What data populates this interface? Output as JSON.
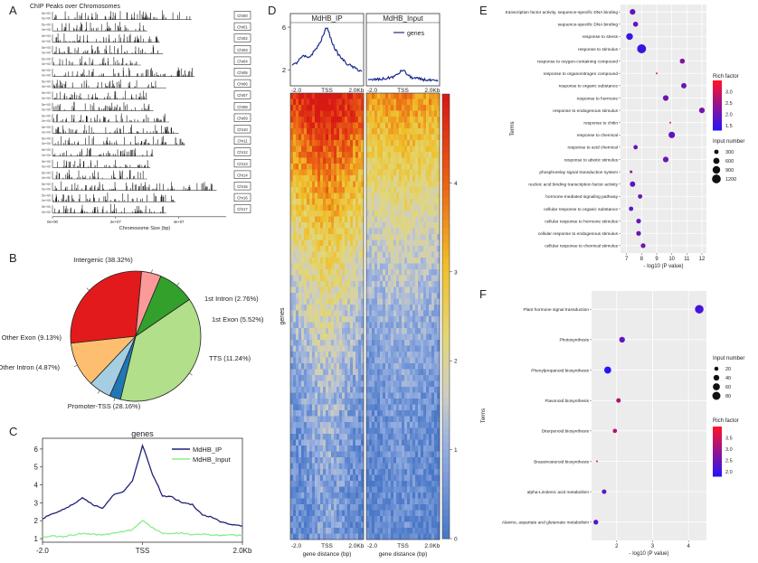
{
  "figure": {
    "panel_letters": [
      "A",
      "B",
      "C",
      "D",
      "E",
      "F"
    ]
  },
  "panel_a": {
    "title": "ChIP Peaks over Chromosomes",
    "xlabel": "Chromosome Size (bp)",
    "xticks": [
      "0e+00",
      "2e+07",
      "4e+07"
    ],
    "ytick_top": "5e+00",
    "ytick_bottom": "0e+00",
    "chromosomes": [
      "Chr00",
      "Chr01",
      "Chr02",
      "Chr03",
      "Chr04",
      "Chr05",
      "Chr06",
      "Chr07",
      "Chr08",
      "Chr09",
      "Chr10",
      "Chr11",
      "Chr12",
      "Chr13",
      "Chr14",
      "Chr15",
      "Chr16",
      "Chr17"
    ],
    "lengths_mb": [
      44,
      30,
      34,
      35,
      28,
      45,
      36,
      30,
      32,
      37,
      40,
      42,
      32,
      31,
      30,
      52,
      39,
      36
    ]
  },
  "chart_data": [
    {
      "type": "pie",
      "panel": "B",
      "labels": [
        "Intergenic (38.32%)",
        "1st Intron (2.76%)",
        "1st Exon (5.52%)",
        "TTS (11.24%)",
        "Promoter-TSS (28.16%)",
        "Other Intron (4.87%)",
        "Other Exon (9.13%)"
      ],
      "values": [
        38.32,
        2.76,
        5.52,
        11.24,
        28.16,
        4.87,
        9.13
      ],
      "colors": [
        "#b2df8a",
        "#1f78b4",
        "#a6cee3",
        "#fdbf6f",
        "#e31a1c",
        "#fb9a99",
        "#33a02c"
      ]
    },
    {
      "type": "line",
      "panel": "C",
      "title": "genes",
      "x": [
        -2000,
        -1800,
        -1600,
        -1400,
        -1200,
        -1000,
        -800,
        -600,
        -400,
        -200,
        0,
        200,
        400,
        600,
        800,
        1000,
        1200,
        1400,
        1600,
        1800,
        2000
      ],
      "xticks": [
        "-2.0",
        "TSS",
        "2.0Kb"
      ],
      "yticks": [
        "1",
        "2",
        "3",
        "4",
        "5",
        "6"
      ],
      "ylim": [
        0.8,
        6.6
      ],
      "series": [
        {
          "name": "MdHB_IP",
          "color": "#1f1f7a",
          "values": [
            2.1,
            2.4,
            2.6,
            2.9,
            3.3,
            2.9,
            2.7,
            3.4,
            3.6,
            4.2,
            6.2,
            4.6,
            3.4,
            3.3,
            3.0,
            2.9,
            2.3,
            2.2,
            1.9,
            1.8,
            1.7
          ]
        },
        {
          "name": "MdHB_Input",
          "color": "#88ee88",
          "values": [
            1.1,
            1.15,
            1.1,
            1.2,
            1.3,
            1.25,
            1.2,
            1.3,
            1.4,
            1.5,
            2.0,
            1.6,
            1.3,
            1.3,
            1.3,
            1.2,
            1.25,
            1.2,
            1.2,
            1.2,
            1.15
          ]
        }
      ]
    },
    {
      "type": "heatmap",
      "panel": "D",
      "profile_titles": [
        "MdHB_IP",
        "MdHB_Input"
      ],
      "profile_ytick_top": "6",
      "profile_ytick_bottom": "2",
      "legend": "genes",
      "xticks": [
        "-2.0",
        "TSS",
        "2.0Kb"
      ],
      "xlabel": "gene distance (bp)",
      "ylabel": "genes",
      "colorbar_ticks": [
        "0",
        "1",
        "2",
        "3",
        "4"
      ],
      "colorbar_range": [
        0,
        5
      ],
      "ip_profile": [
        2.4,
        2.6,
        3.0,
        3.3,
        3.1,
        3.4,
        3.9,
        4.4,
        5.2,
        6.1,
        4.9,
        4.0,
        3.4,
        3.0,
        2.6,
        2.4,
        2.2,
        2.0,
        1.9
      ],
      "input_profile": [
        1.0,
        1.05,
        1.1,
        1.1,
        1.15,
        1.2,
        1.3,
        1.4,
        1.7,
        2.0,
        1.6,
        1.3,
        1.2,
        1.15,
        1.1,
        1.05,
        1.0,
        0.95,
        0.9
      ]
    },
    {
      "type": "scatter",
      "panel": "E",
      "xlabel": "- log10 (P value)",
      "ylabel": "Terms",
      "xticks": [
        7,
        8,
        9,
        10,
        11,
        12
      ],
      "xlim": [
        6.6,
        12.3
      ],
      "size_legend_title": "Input number",
      "size_legend": [
        300,
        600,
        900,
        1200
      ],
      "color_legend_title": "Rich factor",
      "color_ticks": [
        "3.0",
        "2.5",
        "2.0",
        "1.5"
      ],
      "terms": [
        "transcription factor activity, sequence-specific DNA binding",
        "sequence-specific DNA binding",
        "response to stress",
        "response to stimulus",
        "response to oxygen-containing compound",
        "response to organonitrogen compound",
        "response to organic substance",
        "response to hormone",
        "response to endogenous stimulus",
        "response to chitin",
        "response to chemical",
        "response to acid chemical",
        "response to abiotic stimulus",
        "phosphorelay signal transduction system",
        "nucleic acid binding transcription factor activity",
        "hormone-mediated signaling pathway",
        "cellular response to organic substance",
        "cellular response to hormone stimulus",
        "cellular response to endogenous stimulus",
        "cellular response to chemical stimulus"
      ],
      "x": [
        7.4,
        7.6,
        7.2,
        8.0,
        10.7,
        9.0,
        10.8,
        9.6,
        12.0,
        9.9,
        10.0,
        7.6,
        9.6,
        7.3,
        7.4,
        7.9,
        7.3,
        7.8,
        7.8,
        8.1
      ],
      "input_number": [
        500,
        400,
        700,
        1250,
        400,
        50,
        450,
        500,
        500,
        40,
        650,
        300,
        500,
        120,
        450,
        300,
        300,
        350,
        350,
        350
      ],
      "rich_factor": [
        1.9,
        1.9,
        1.5,
        1.5,
        2.2,
        3.4,
        2.0,
        2.0,
        2.1,
        3.4,
        1.9,
        2.0,
        2.0,
        2.6,
        1.8,
        2.0,
        1.8,
        2.0,
        2.0,
        2.0
      ]
    },
    {
      "type": "scatter",
      "panel": "F",
      "xlabel": "- log10 (P value)",
      "ylabel": "Terms",
      "xticks": [
        2,
        3,
        4
      ],
      "xlim": [
        1.3,
        4.5
      ],
      "size_legend_title": "Input number",
      "size_legend": [
        20,
        40,
        60,
        80
      ],
      "color_legend_title": "Rich factor",
      "color_ticks": [
        "3.5",
        "3.0",
        "2.5",
        "2.0"
      ],
      "terms": [
        "Plant hormone signal transduction",
        "Photosynthesis",
        "Phenylpropanoid biosynthesis",
        "Flavonoid biosynthesis",
        "Diterpenoid biosynthesis",
        "Brassinosteroid biosynthesis",
        "alpha-Linolenic acid metabolism",
        "Alanine, aspartate and glutamate metabolism"
      ],
      "x": [
        4.3,
        2.15,
        1.75,
        2.05,
        1.95,
        1.45,
        1.65,
        1.42
      ],
      "input_number": [
        90,
        40,
        60,
        25,
        22,
        4,
        25,
        28
      ],
      "rich_factor": [
        2.1,
        2.4,
        1.8,
        3.2,
        3.2,
        3.9,
        2.4,
        2.2
      ]
    }
  ]
}
